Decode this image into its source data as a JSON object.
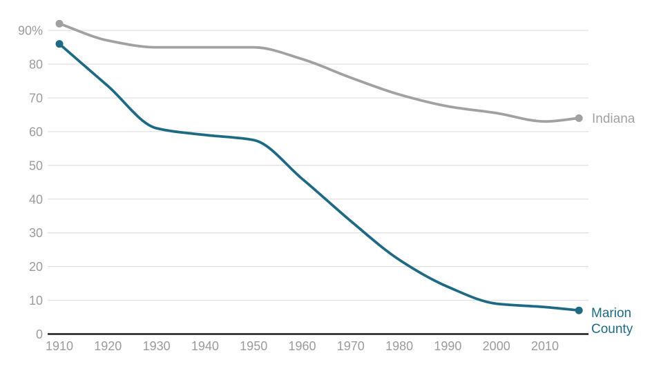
{
  "chart_data": {
    "type": "line",
    "x": [
      1910,
      1920,
      1930,
      1940,
      1950,
      1960,
      1970,
      1980,
      1990,
      2000,
      2010,
      2017
    ],
    "series": [
      {
        "name": "Indiana",
        "color": "#a1a1a1",
        "values": [
          92,
          87,
          85,
          85,
          85,
          81.5,
          76,
          71,
          67.5,
          65.5,
          63,
          64
        ]
      },
      {
        "name": "Marion County",
        "color": "#1e6a84",
        "values": [
          86,
          73.5,
          61,
          59,
          57.5,
          46,
          33.5,
          22,
          14,
          9,
          8,
          7
        ]
      }
    ],
    "title": "",
    "xlabel": "",
    "ylabel": "",
    "ylim": [
      0,
      95
    ],
    "xlim": [
      1907.5,
      2019
    ],
    "yticks": [
      0,
      10,
      20,
      30,
      40,
      50,
      60,
      70,
      80,
      90
    ],
    "ytick_labels": [
      "0",
      "10",
      "20",
      "30",
      "40",
      "50",
      "60",
      "70",
      "80",
      "90%"
    ],
    "xticks": [
      1910,
      1920,
      1930,
      1940,
      1950,
      1960,
      1970,
      1980,
      1990,
      2000,
      2010
    ],
    "xtick_labels": [
      "1910",
      "1920",
      "1930",
      "1940",
      "1950",
      "1960",
      "1970",
      "1980",
      "1990",
      "2000",
      "2010"
    ],
    "grid": true,
    "legend_position": "line-end-labels",
    "curve": "smooth-monotone"
  },
  "axes": {
    "tick_color": "#9b9b9b",
    "grid_color": "#e0e0e0",
    "axis_line_color": "#1a1a1a"
  }
}
